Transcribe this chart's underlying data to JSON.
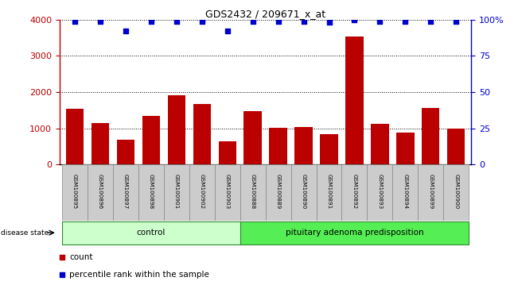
{
  "title": "GDS2432 / 209671_x_at",
  "samples": [
    "GSM100895",
    "GSM100896",
    "GSM100897",
    "GSM100898",
    "GSM100901",
    "GSM100902",
    "GSM100903",
    "GSM100888",
    "GSM100889",
    "GSM100890",
    "GSM100891",
    "GSM100892",
    "GSM100893",
    "GSM100894",
    "GSM100899",
    "GSM100900"
  ],
  "counts": [
    1530,
    1150,
    680,
    1350,
    1900,
    1680,
    640,
    1480,
    1020,
    1030,
    840,
    3540,
    1130,
    890,
    1570,
    990
  ],
  "percentile_ranks": [
    99,
    99,
    92,
    99,
    99,
    99,
    92,
    99,
    99,
    99,
    98,
    100,
    99,
    99,
    99,
    99
  ],
  "control_count": 7,
  "disease_count": 9,
  "control_label": "control",
  "disease_label": "pituitary adenoma predisposition",
  "group_label": "disease state",
  "bar_color": "#bb0000",
  "dot_color": "#0000cc",
  "ylim_left": [
    0,
    4000
  ],
  "ylim_right": [
    0,
    100
  ],
  "yticks_left": [
    0,
    1000,
    2000,
    3000,
    4000
  ],
  "yticks_right": [
    0,
    25,
    50,
    75,
    100
  ],
  "ytick_labels_right": [
    "0",
    "25",
    "50",
    "75",
    "100%"
  ],
  "legend_count_label": "count",
  "legend_pct_label": "percentile rank within the sample",
  "control_bg": "#ccffcc",
  "disease_bg": "#55ee55",
  "tick_bg": "#cccccc",
  "tick_edge": "#888888",
  "group_edge": "#338833"
}
